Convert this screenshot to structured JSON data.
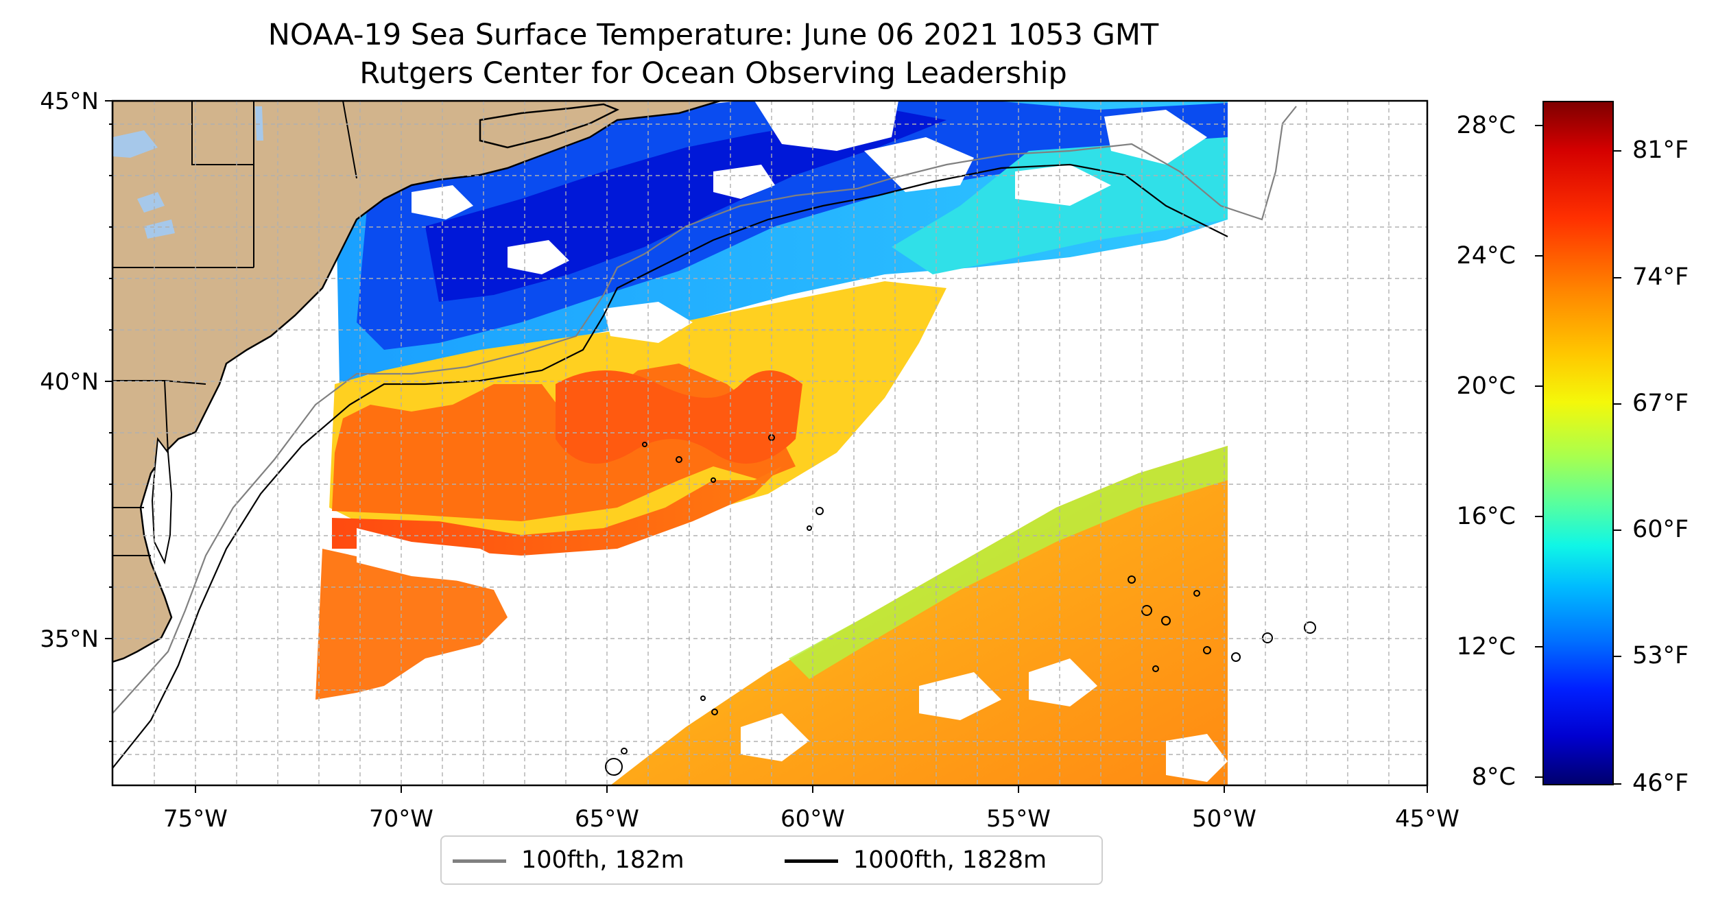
{
  "title": {
    "line1": "NOAA-19 Sea Surface Temperature: June 06 2021 1053 GMT",
    "line2": "Rutgers Center for Ocean Observing Leadership"
  },
  "map": {
    "extent": {
      "lon": [
        -77,
        -45
      ],
      "lat": [
        32.2,
        45
      ]
    },
    "lon_labels": [
      "75°W",
      "70°W",
      "65°W",
      "60°W",
      "55°W",
      "50°W",
      "45°W"
    ],
    "lat_labels": [
      "45°N",
      "40°N",
      "35°N"
    ],
    "land_color": "#d2b48c",
    "water_body_color": "#a6c8ea"
  },
  "legend": {
    "items": [
      {
        "label": "100fth, 182m",
        "color": "#808080"
      },
      {
        "label": "1000fth, 1828m",
        "color": "#000000"
      }
    ]
  },
  "colorbar": {
    "celsius_labels": [
      "28°C",
      "24°C",
      "20°C",
      "16°C",
      "12°C",
      "8°C"
    ],
    "fahrenheit_labels": [
      "81°F",
      "74°F",
      "67°F",
      "60°F",
      "53°F",
      "46°F"
    ],
    "range_c": [
      7.7,
      28.7
    ],
    "colormap": "jet"
  }
}
